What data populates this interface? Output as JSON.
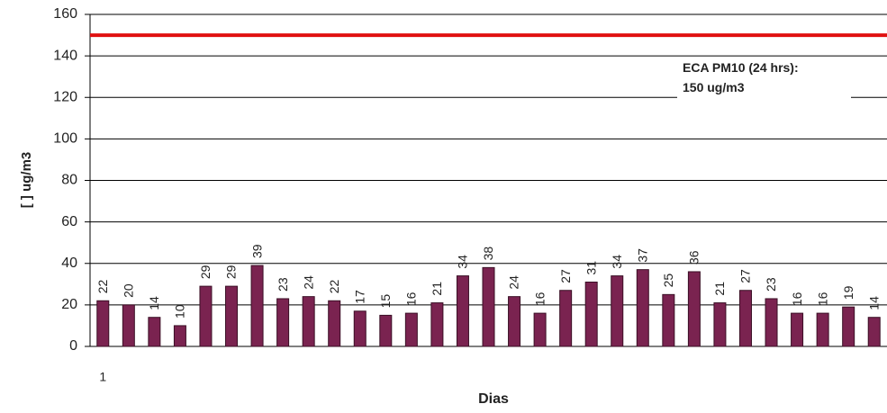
{
  "chart_data": {
    "type": "bar",
    "y_label": "[ ] ug/m3",
    "x_label": "Dias",
    "categories": [
      "1",
      null,
      null,
      null,
      null,
      null,
      null,
      null,
      null,
      null,
      null,
      null,
      null,
      null,
      null,
      null,
      null,
      null,
      null,
      null,
      null,
      null,
      null,
      null,
      null,
      null,
      null,
      null,
      null,
      null,
      null
    ],
    "values": [
      22,
      20,
      14,
      10,
      29,
      29,
      39,
      23,
      24,
      22,
      17,
      15,
      16,
      21,
      34,
      38,
      24,
      16,
      27,
      31,
      34,
      37,
      25,
      36,
      21,
      27,
      23,
      16,
      16,
      19,
      14
    ],
    "color": "#7a2350",
    "ylim": [
      0,
      160
    ],
    "yticks": [
      0,
      20,
      40,
      60,
      80,
      100,
      120,
      140,
      160
    ],
    "grid": true,
    "reference_line": {
      "value": 150,
      "color": "#e01010"
    },
    "annotation": [
      "ECA PM10 (24 hrs):",
      "150 ug/m3"
    ]
  }
}
